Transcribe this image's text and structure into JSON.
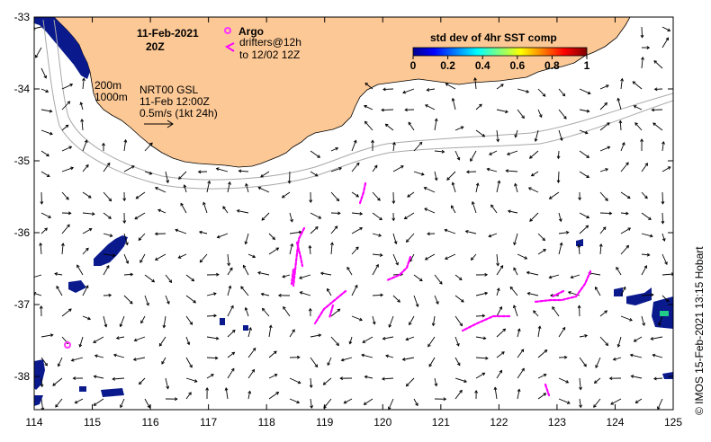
{
  "map": {
    "date_title": "11-Feb-2021",
    "time_title": "20Z",
    "legend": {
      "argo_label": "Argo",
      "drifters_line1": "drifters@12h",
      "drifters_line2": "to 12/02 12Z",
      "argo_color": "#ff33ff",
      "drifter_color": "#ff00ff"
    },
    "colorbar": {
      "title": "std dev of 4hr SST comp",
      "ticks": [
        "0",
        "0.2",
        "0.4",
        "0.6",
        "0.8",
        "1"
      ]
    },
    "info": {
      "depth_200": "200m",
      "depth_1000": "1000m",
      "product": "NRT00 GSL",
      "valid_time": "11-Feb 12:00Z",
      "scale": "0.5m/s (1kt 24h)"
    },
    "credit": "©  IMOS 15-Feb-2021 13:15 Hobart",
    "x_ticks": [
      "114",
      "115",
      "116",
      "117",
      "118",
      "119",
      "120",
      "121",
      "122",
      "123",
      "124",
      "125"
    ],
    "y_ticks": [
      "-33",
      "-34",
      "-35",
      "-36",
      "-37",
      "-38"
    ],
    "land_color": "#fcc895",
    "sst_color": "#0a1a8c"
  }
}
